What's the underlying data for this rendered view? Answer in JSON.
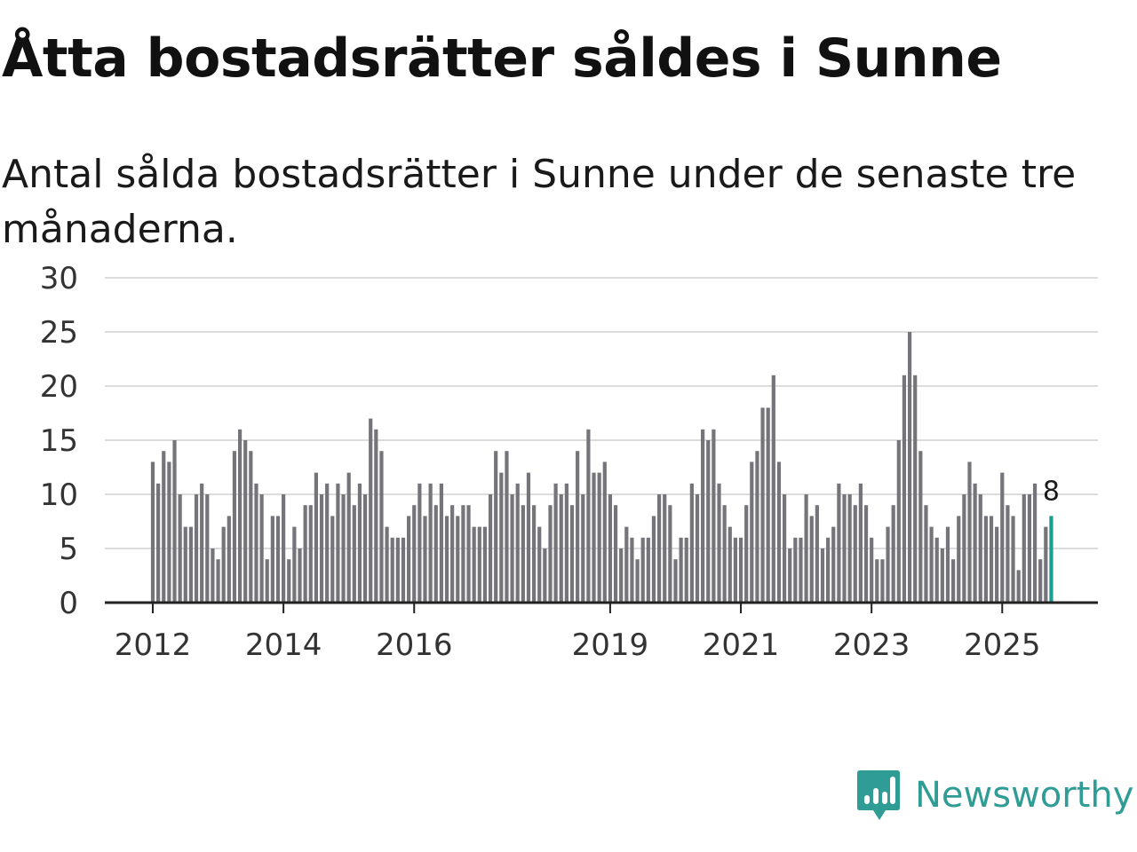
{
  "title": "Åtta bostadsrätter såldes i Sunne",
  "subtitle": "Antal sålda bostadsrätter i Sunne under de senaste tre månaderna.",
  "brand": {
    "name": "Newsworthy",
    "icon": "newsworthy-logo-icon",
    "color": "#2f9d95"
  },
  "chart_data": {
    "type": "bar",
    "title": "Åtta bostadsrätter såldes i Sunne",
    "xlabel": "",
    "ylabel": "",
    "ylim": [
      0,
      30
    ],
    "yticks": [
      0,
      5,
      10,
      15,
      20,
      25,
      30
    ],
    "grid": true,
    "bar_color": "#75747a",
    "highlight_color": "#1a9e93",
    "x_start": "2012-01",
    "xtick_labels": [
      {
        "label": "2012",
        "index": 0
      },
      {
        "label": "2014",
        "index": 24
      },
      {
        "label": "2016",
        "index": 48
      },
      {
        "label": "2019",
        "index": 84
      },
      {
        "label": "2021",
        "index": 108
      },
      {
        "label": "2023",
        "index": 132
      },
      {
        "label": "2025",
        "index": 156
      }
    ],
    "values": [
      13,
      11,
      14,
      13,
      15,
      10,
      7,
      7,
      10,
      11,
      10,
      5,
      4,
      7,
      8,
      14,
      16,
      15,
      14,
      11,
      10,
      4,
      8,
      8,
      10,
      4,
      7,
      5,
      9,
      9,
      12,
      10,
      11,
      8,
      11,
      10,
      12,
      9,
      11,
      10,
      17,
      16,
      14,
      7,
      6,
      6,
      6,
      8,
      9,
      11,
      8,
      11,
      9,
      11,
      8,
      9,
      8,
      9,
      9,
      7,
      7,
      7,
      10,
      14,
      12,
      14,
      10,
      11,
      9,
      12,
      9,
      7,
      5,
      9,
      11,
      10,
      11,
      9,
      14,
      10,
      16,
      12,
      12,
      13,
      10,
      9,
      5,
      7,
      6,
      4,
      6,
      6,
      8,
      10,
      10,
      9,
      4,
      6,
      6,
      11,
      10,
      16,
      15,
      16,
      11,
      9,
      7,
      6,
      6,
      9,
      13,
      14,
      18,
      18,
      21,
      13,
      10,
      5,
      6,
      6,
      10,
      8,
      9,
      5,
      6,
      7,
      11,
      10,
      10,
      9,
      11,
      9,
      6,
      4,
      4,
      7,
      9,
      15,
      21,
      25,
      21,
      14,
      9,
      7,
      6,
      5,
      7,
      4,
      8,
      10,
      13,
      11,
      10,
      8,
      8,
      7,
      12,
      9,
      8,
      3,
      10,
      10,
      11,
      4,
      7,
      8
    ],
    "highlight_index": 165,
    "highlight_label": "8"
  }
}
